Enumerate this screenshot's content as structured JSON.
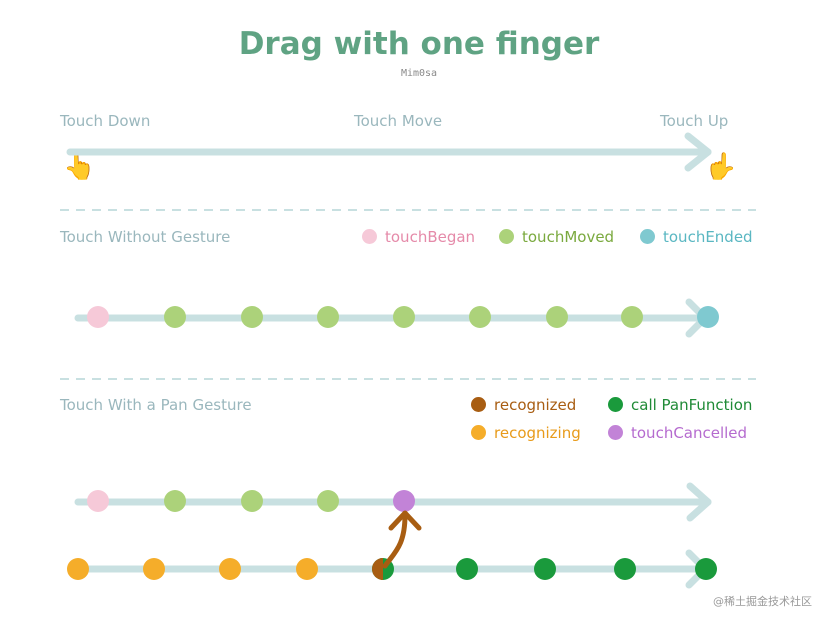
{
  "title": "Drag with one finger",
  "author": "Mim0sa",
  "section1": {
    "labels": [
      "Touch Down",
      "Touch Move",
      "Touch Up"
    ],
    "hand_icon": "pointing-hand-icon"
  },
  "section2": {
    "label": "Touch Without Gesture",
    "legend": [
      {
        "label": "touchBegan",
        "color": "#f6c9d8",
        "text_color": "#e58aa9"
      },
      {
        "label": "touchMoved",
        "color": "#acd27a",
        "text_color": "#7aa93e"
      },
      {
        "label": "touchEnded",
        "color": "#7fc9d0",
        "text_color": "#5ab7c2"
      }
    ]
  },
  "section3": {
    "label": "Touch With a Pan Gesture",
    "legend": [
      {
        "label": "recognized",
        "color": "#a85d12",
        "text_color": "#a85d12"
      },
      {
        "label": "call PanFunction",
        "color": "#1a9a3c",
        "text_color": "#1f8a36"
      },
      {
        "label": "recognizing",
        "color": "#f5ad2a",
        "text_color": "#e89b1b"
      },
      {
        "label": "touchCancelled",
        "color": "#c283d7",
        "text_color": "#b56bcf"
      }
    ]
  },
  "colors": {
    "track": "#c8e0e1",
    "divider": "#c8e0e1",
    "began": "#f6c9d8",
    "moved": "#acd27a",
    "ended": "#7fc9d0",
    "recognized": "#a85d12",
    "recognizing": "#f5ad2a",
    "call": "#1a9a3c",
    "cancelled": "#c283d7"
  },
  "watermark": "@稀土掘金技术社区"
}
